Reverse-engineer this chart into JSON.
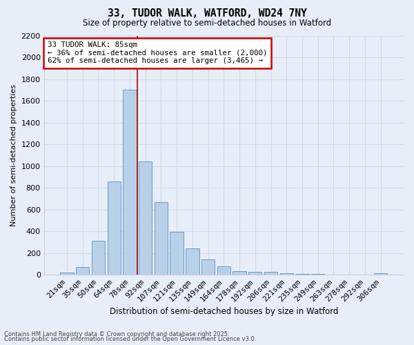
{
  "title1": "33, TUDOR WALK, WATFORD, WD24 7NY",
  "title2": "Size of property relative to semi-detached houses in Watford",
  "xlabel": "Distribution of semi-detached houses by size in Watford",
  "ylabel": "Number of semi-detached properties",
  "categories": [
    "21sqm",
    "35sqm",
    "50sqm",
    "64sqm",
    "78sqm",
    "92sqm",
    "107sqm",
    "121sqm",
    "135sqm",
    "149sqm",
    "164sqm",
    "178sqm",
    "192sqm",
    "206sqm",
    "221sqm",
    "235sqm",
    "249sqm",
    "263sqm",
    "278sqm",
    "292sqm",
    "306sqm"
  ],
  "values": [
    20,
    75,
    310,
    860,
    1700,
    1040,
    670,
    395,
    245,
    145,
    80,
    35,
    30,
    28,
    18,
    10,
    10,
    0,
    0,
    0,
    15
  ],
  "bar_color": "#b8d0e8",
  "bar_edge_color": "#6699cc",
  "bg_color": "#e8eef8",
  "grid_color": "#d0d8e8",
  "property_label": "33 TUDOR WALK: 85sqm",
  "smaller_pct": 36,
  "smaller_count": 2000,
  "larger_pct": 62,
  "larger_count": 3465,
  "annotation_box_color": "#ffffff",
  "annotation_box_edge": "#cc0000",
  "vline_color": "#aa0000",
  "vline_index": 4,
  "ylim": [
    0,
    2200
  ],
  "yticks": [
    0,
    200,
    400,
    600,
    800,
    1000,
    1200,
    1400,
    1600,
    1800,
    2000,
    2200
  ],
  "footer1": "Contains HM Land Registry data © Crown copyright and database right 2025.",
  "footer2": "Contains public sector information licensed under the Open Government Licence v3.0."
}
